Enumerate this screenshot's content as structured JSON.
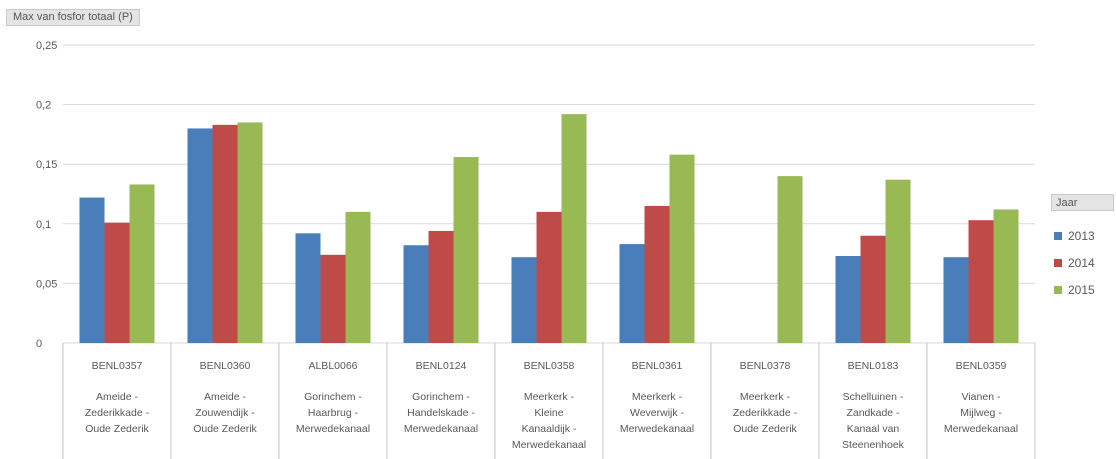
{
  "pivot": {
    "value_field": "Max van fosfor totaal (P)",
    "series_field": "Jaar"
  },
  "colors": {
    "2013": "#4a7ebb",
    "2014": "#be4b48",
    "2015": "#98b954",
    "gridline": "#d9d9d9"
  },
  "chart_data": {
    "type": "bar",
    "ylim": [
      0,
      0.25
    ],
    "yticks": [
      0,
      0.05,
      0.1,
      0.15,
      0.2,
      0.25
    ],
    "ytick_labels": [
      "0",
      "0,05",
      "0,1",
      "0,15",
      "0,2",
      "0,25"
    ],
    "grid": true,
    "legend_position": "right",
    "categories": [
      {
        "code": "BENL0357",
        "name": [
          "Ameide -",
          "Zederikkade -",
          "Oude Zederik"
        ]
      },
      {
        "code": "BENL0360",
        "name": [
          "Ameide -",
          "Zouwendijk -",
          "Oude Zederik"
        ]
      },
      {
        "code": "ALBL0066",
        "name": [
          "Gorinchem -",
          "Haarbrug -",
          "Merwedekanaal"
        ]
      },
      {
        "code": "BENL0124",
        "name": [
          "Gorinchem -",
          "Handelskade -",
          "Merwedekanaal"
        ]
      },
      {
        "code": "BENL0358",
        "name": [
          "Meerkerk -",
          "Kleine",
          "Kanaaldijk -",
          "Merwedekanaal"
        ]
      },
      {
        "code": "BENL0361",
        "name": [
          "Meerkerk -",
          "Weverwijk -",
          "Merwedekanaal"
        ]
      },
      {
        "code": "BENL0378",
        "name": [
          "Meerkerk -",
          "Zederikkade -",
          "Oude Zederik"
        ]
      },
      {
        "code": "BENL0183",
        "name": [
          "Schelluinen -",
          "Zandkade -",
          "Kanaal van",
          "Steenenhoek"
        ]
      },
      {
        "code": "BENL0359",
        "name": [
          "Vianen -",
          "Mijlweg -",
          "Merwedekanaal"
        ]
      }
    ],
    "series": [
      {
        "name": "2013",
        "values": [
          0.122,
          0.18,
          0.092,
          0.082,
          0.072,
          0.083,
          null,
          0.073,
          0.072
        ]
      },
      {
        "name": "2014",
        "values": [
          0.101,
          0.183,
          0.074,
          0.094,
          0.11,
          0.115,
          null,
          0.09,
          0.103
        ]
      },
      {
        "name": "2015",
        "values": [
          0.133,
          0.185,
          0.11,
          0.156,
          0.192,
          0.158,
          0.14,
          0.137,
          0.112
        ]
      }
    ]
  }
}
